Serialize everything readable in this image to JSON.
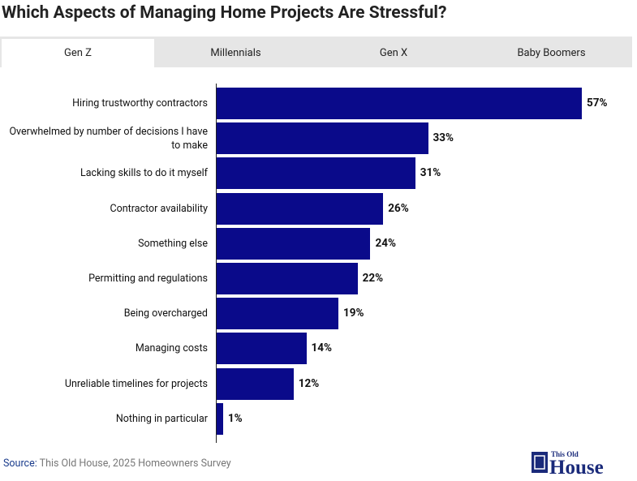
{
  "title": "Which Aspects of Managing Home Projects Are Stressful?",
  "tabs": [
    "Gen Z",
    "Millennials",
    "Gen X",
    "Baby Boomers"
  ],
  "active_tab": 0,
  "chart_data": {
    "type": "bar",
    "categories": [
      "Hiring trustworthy contractors",
      "Overwhelmed by number of decisions I have to make",
      "Lacking skills to do it myself",
      "Contractor availability",
      "Something else",
      "Permitting and regulations",
      "Being overcharged",
      "Managing costs",
      "Unreliable timelines for projects",
      "Nothing in particular"
    ],
    "values": [
      57,
      33,
      31,
      26,
      24,
      22,
      19,
      14,
      12,
      1
    ],
    "value_labels": [
      "57%",
      "33%",
      "31%",
      "26%",
      "24%",
      "22%",
      "19%",
      "14%",
      "12%",
      "1%"
    ],
    "color": "#0a0a8a"
  },
  "source": {
    "label": "Source:",
    "text": "This Old House, 2025 Homeowners Survey"
  },
  "logo": {
    "top": "This Old",
    "bottom": "House"
  }
}
